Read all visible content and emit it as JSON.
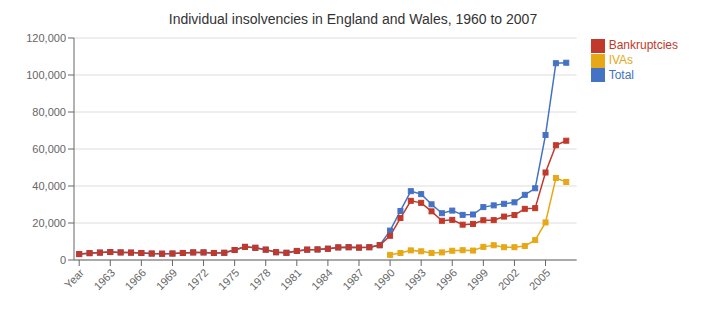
{
  "chart_data": {
    "type": "line",
    "title": "Individual insolvencies in England and Wales, 1960 to 2007",
    "x": [
      1960,
      1961,
      1962,
      1963,
      1964,
      1965,
      1966,
      1967,
      1968,
      1969,
      1970,
      1971,
      1972,
      1973,
      1974,
      1975,
      1976,
      1977,
      1978,
      1979,
      1980,
      1981,
      1982,
      1983,
      1984,
      1985,
      1986,
      1987,
      1988,
      1989,
      1990,
      1991,
      1992,
      1993,
      1994,
      1995,
      1996,
      1997,
      1998,
      1999,
      2000,
      2001,
      2002,
      2003,
      2004,
      2005,
      2006,
      2007
    ],
    "series": [
      {
        "name": "Total",
        "color": "#4472C4",
        "marker": "square",
        "values": [
          3200,
          3700,
          4000,
          4300,
          4100,
          4000,
          3800,
          3500,
          3400,
          3500,
          3800,
          4100,
          4100,
          3800,
          3900,
          5400,
          7100,
          6600,
          5600,
          4200,
          3900,
          4900,
          5600,
          5700,
          6100,
          6800,
          6900,
          6700,
          6900,
          8000,
          15900,
          26500,
          37200,
          35600,
          30100,
          25300,
          26700,
          24400,
          24600,
          28600,
          29528,
          30377,
          31192,
          35236,
          38773,
          67583,
          106364,
          106645
        ]
      },
      {
        "name": "Bankruptcies",
        "color": "#C0392B",
        "marker": "square",
        "values": [
          3200,
          3700,
          4000,
          4300,
          4100,
          4000,
          3800,
          3500,
          3400,
          3500,
          3800,
          4100,
          4100,
          3800,
          3900,
          5400,
          7100,
          6600,
          5600,
          4200,
          3900,
          4900,
          5600,
          5700,
          6100,
          6800,
          6900,
          6700,
          6900,
          8000,
          13100,
          22700,
          32000,
          30900,
          26300,
          21200,
          21700,
          19100,
          19500,
          21500,
          21550,
          23477,
          24292,
          27653,
          28021,
          47290,
          62032,
          64480
        ]
      },
      {
        "name": "IVAs",
        "color": "#E6A817",
        "marker": "square",
        "values": [
          null,
          null,
          null,
          null,
          null,
          null,
          null,
          null,
          null,
          null,
          null,
          null,
          null,
          null,
          null,
          null,
          null,
          null,
          null,
          null,
          null,
          null,
          null,
          null,
          null,
          null,
          null,
          null,
          null,
          null,
          2800,
          3800,
          5200,
          4700,
          3800,
          4100,
          5000,
          5300,
          5100,
          7100,
          7978,
          6900,
          6900,
          7583,
          10752,
          20293,
          44332,
          42165
        ]
      }
    ],
    "xlim": [
      1959.5,
      2008
    ],
    "xticks": [
      {
        "value": 1960,
        "label": "Year"
      },
      1963,
      1966,
      1969,
      1972,
      1975,
      1978,
      1981,
      1984,
      1987,
      1990,
      1993,
      1996,
      1999,
      2002,
      2005
    ],
    "ylim": [
      0,
      120000
    ],
    "yticks": [
      0,
      {
        "value": 20000,
        "label": "20,000"
      },
      {
        "value": 40000,
        "label": "40,000"
      },
      {
        "value": 60000,
        "label": "60,000"
      },
      {
        "value": 80000,
        "label": "80,000"
      },
      {
        "value": 100000,
        "label": "100,000"
      },
      {
        "value": 120000,
        "label": "120,000"
      }
    ],
    "grid": "y",
    "legend": "upper right"
  }
}
